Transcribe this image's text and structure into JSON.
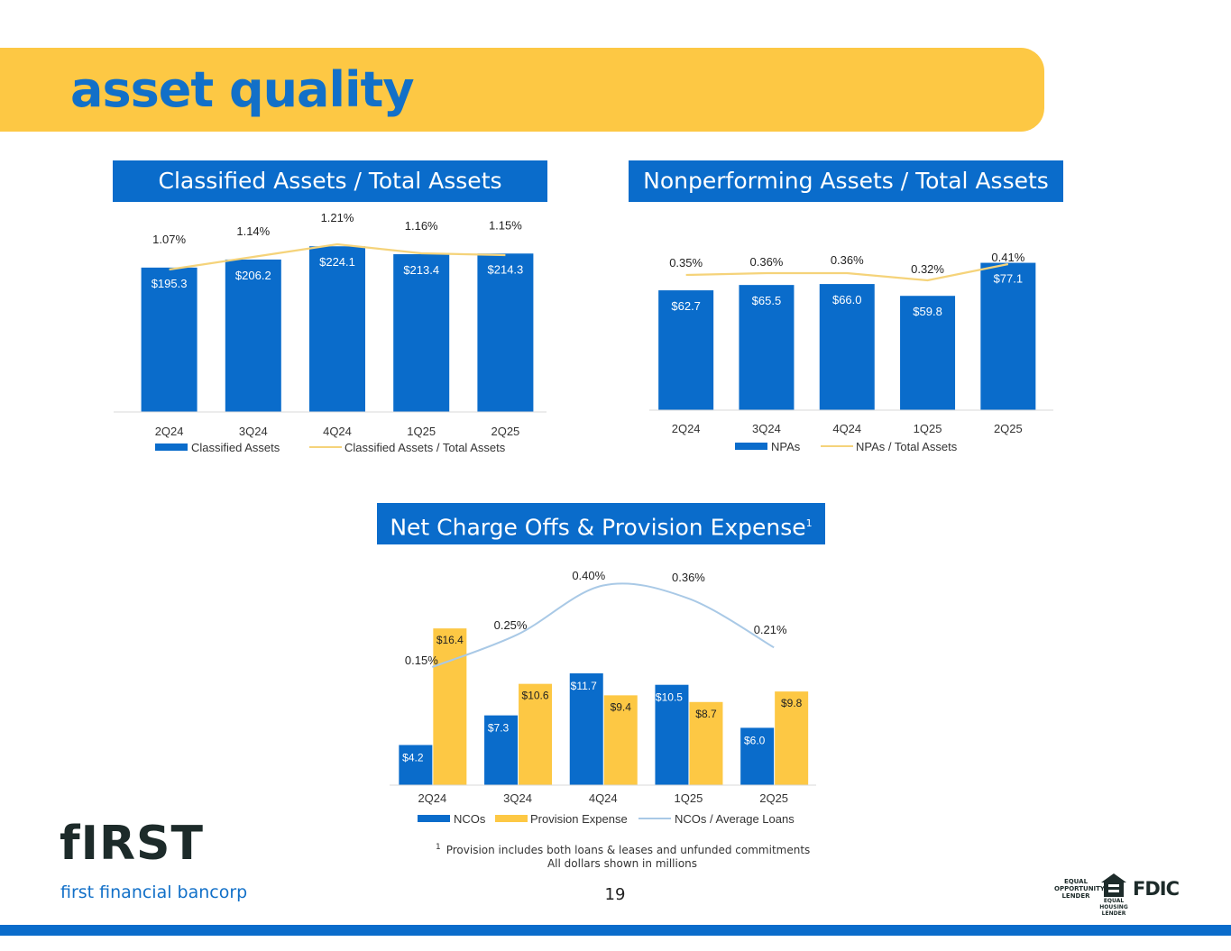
{
  "page": {
    "title": "asset quality",
    "page_number": "19"
  },
  "colors": {
    "blue": "#0A6CCB",
    "gold": "#FDC844",
    "line_gold": "#F5D37A",
    "line_blue": "#A9C9E6"
  },
  "logo": {
    "word": "fIRST",
    "subtitle": "first financial bancorp"
  },
  "footnotes": {
    "marker": "1",
    "line1": "Provision includes both loans & leases and unfunded commitments",
    "line2": "All dollars shown in millions"
  },
  "badges": {
    "equal_opportunity": "EQUAL OPPORTUNITY LENDER",
    "equal_housing": "EQUAL HOUSING LENDER",
    "fdic": "FDIC"
  },
  "chart_data": [
    {
      "id": "classified",
      "type": "bar",
      "title": "Classified Assets / Total Assets",
      "categories": [
        "2Q24",
        "3Q24",
        "4Q24",
        "1Q25",
        "2Q25"
      ],
      "series": [
        {
          "name": "Classified Assets",
          "kind": "bar",
          "values": [
            195.3,
            206.2,
            224.1,
            213.4,
            214.3
          ],
          "labels": [
            "$195.3",
            "$206.2",
            "$224.1",
            "$213.4",
            "$214.3"
          ],
          "color": "#0A6CCB"
        },
        {
          "name": "Classified Assets / Total Assets",
          "kind": "line",
          "values": [
            1.07,
            1.14,
            1.21,
            1.16,
            1.15
          ],
          "labels": [
            "1.07%",
            "1.14%",
            "1.21%",
            "1.16%",
            "1.15%"
          ],
          "color": "#F5D37A"
        }
      ],
      "legend": "bottom"
    },
    {
      "id": "npa",
      "type": "bar",
      "title": "Nonperforming Assets / Total Assets",
      "categories": [
        "2Q24",
        "3Q24",
        "4Q24",
        "1Q25",
        "2Q25"
      ],
      "series": [
        {
          "name": "NPAs",
          "kind": "bar",
          "values": [
            62.7,
            65.5,
            66.0,
            59.8,
            77.1
          ],
          "labels": [
            "$62.7",
            "$65.5",
            "$66.0",
            "$59.8",
            "$77.1"
          ],
          "color": "#0A6CCB"
        },
        {
          "name": "NPAs / Total Assets",
          "kind": "line",
          "values": [
            0.35,
            0.36,
            0.36,
            0.32,
            0.41
          ],
          "labels": [
            "0.35%",
            "0.36%",
            "0.36%",
            "0.32%",
            "0.41%"
          ],
          "color": "#F5D37A"
        }
      ],
      "legend": "bottom"
    },
    {
      "id": "nco",
      "type": "bar",
      "title": "Net Charge Offs & Provision Expense",
      "title_marker": "1",
      "categories": [
        "2Q24",
        "3Q24",
        "4Q24",
        "1Q25",
        "2Q25"
      ],
      "series": [
        {
          "name": "NCOs",
          "kind": "bar",
          "values": [
            4.2,
            7.3,
            11.7,
            10.5,
            6.0
          ],
          "labels": [
            "$4.2",
            "$7.3",
            "$11.7",
            "$10.5",
            "$6.0"
          ],
          "color": "#0A6CCB"
        },
        {
          "name": "Provision Expense",
          "kind": "bar",
          "values": [
            16.4,
            10.6,
            9.4,
            8.7,
            9.8
          ],
          "labels": [
            "$16.4",
            "$10.6",
            "$9.4",
            "$8.7",
            "$9.8"
          ],
          "color": "#FDC844"
        },
        {
          "name": "NCOs / Average Loans",
          "kind": "line",
          "values": [
            0.15,
            0.25,
            0.4,
            0.36,
            0.21
          ],
          "labels": [
            "0.15%",
            "0.25%",
            "0.40%",
            "0.36%",
            "0.21%"
          ],
          "color": "#A9C9E6"
        }
      ],
      "legend": "bottom"
    }
  ]
}
